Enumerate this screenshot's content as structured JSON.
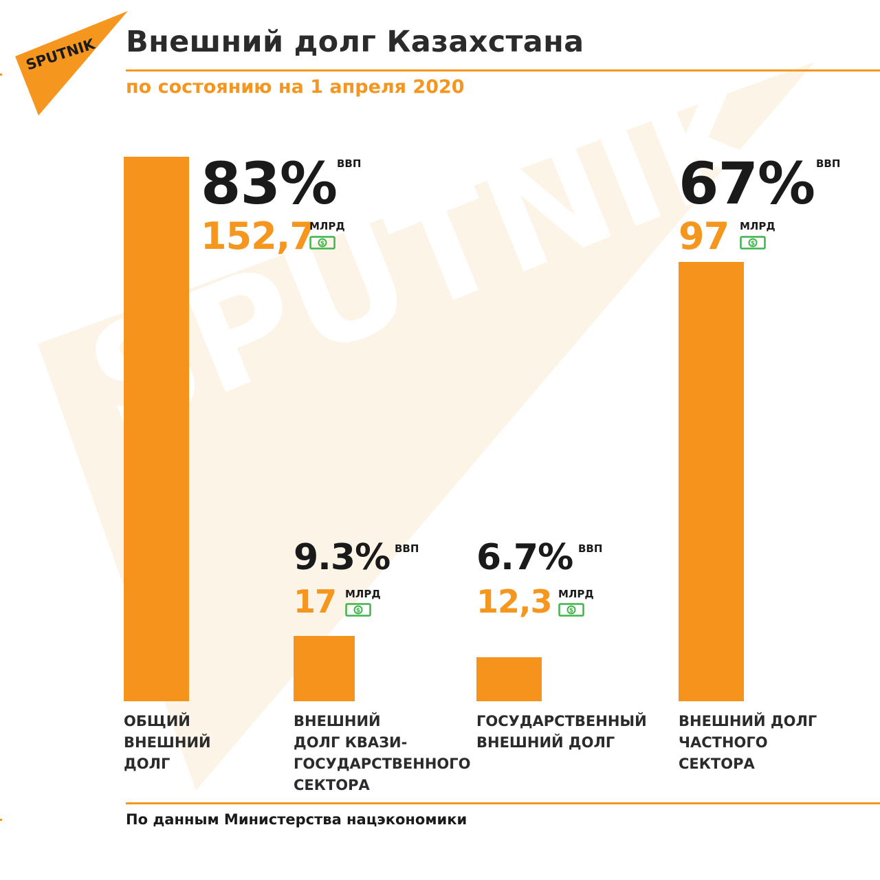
{
  "brand": {
    "logo_text": "SPUTNIK",
    "watermark_text": "SPUTNIK",
    "color": "#f5961f"
  },
  "header": {
    "title": "Внешний долг Казахстана",
    "subtitle": "по состоянию на 1 апреля 2020"
  },
  "units": {
    "gdp": "ВВП",
    "billion": "МЛРД"
  },
  "chart_data": {
    "type": "bar",
    "title": "Внешний долг Казахстана",
    "subtitle": "по состоянию на 1 апреля 2020",
    "categories": [
      "ОБЩИЙ ВНЕШНИЙ ДОЛГ",
      "ВНЕШНИЙ ДОЛГ КВАЗИГОСУДАРСТВЕННОГО СЕКТОРА",
      "ГОСУДАРСТВЕННЫЙ ВНЕШНИЙ ДОЛГ",
      "ВНЕШНИЙ ДОЛГ ЧАСТНОГО СЕКТОРА"
    ],
    "series": [
      {
        "values": [
          83,
          9.3,
          6.7,
          67
        ]
      },
      {
        "values": [
          152.7,
          17,
          12.3,
          97
        ]
      }
    ],
    "value_labels": [
      "83%",
      "9.3%",
      "6.7%",
      "67%"
    ],
    "amount_labels": [
      "152,7",
      "17",
      "12,3",
      "97"
    ],
    "colors": {
      "bar": "#f5931c",
      "amount": "#f5961f",
      "money_icon": "#3fb44a"
    },
    "source": "По данным Министерства нацэкономики"
  },
  "labels": [
    [
      "ОБЩИЙ",
      "ВНЕШНИЙ",
      "ДОЛГ"
    ],
    [
      "ВНЕШНИЙ",
      "ДОЛГ КВАЗИ-",
      "ГОСУДАРСТВЕННОГО",
      "СЕКТОРА"
    ],
    [
      "ГОСУДАРСТВЕННЫЙ",
      "ВНЕШНИЙ ДОЛГ"
    ],
    [
      "ВНЕШНИЙ ДОЛГ",
      "ЧАСТНОГО",
      "СЕКТОРА"
    ]
  ],
  "footer": {
    "source": "По данным Министерства нацэкономики"
  },
  "icons": {
    "money": "money-bill-icon"
  }
}
